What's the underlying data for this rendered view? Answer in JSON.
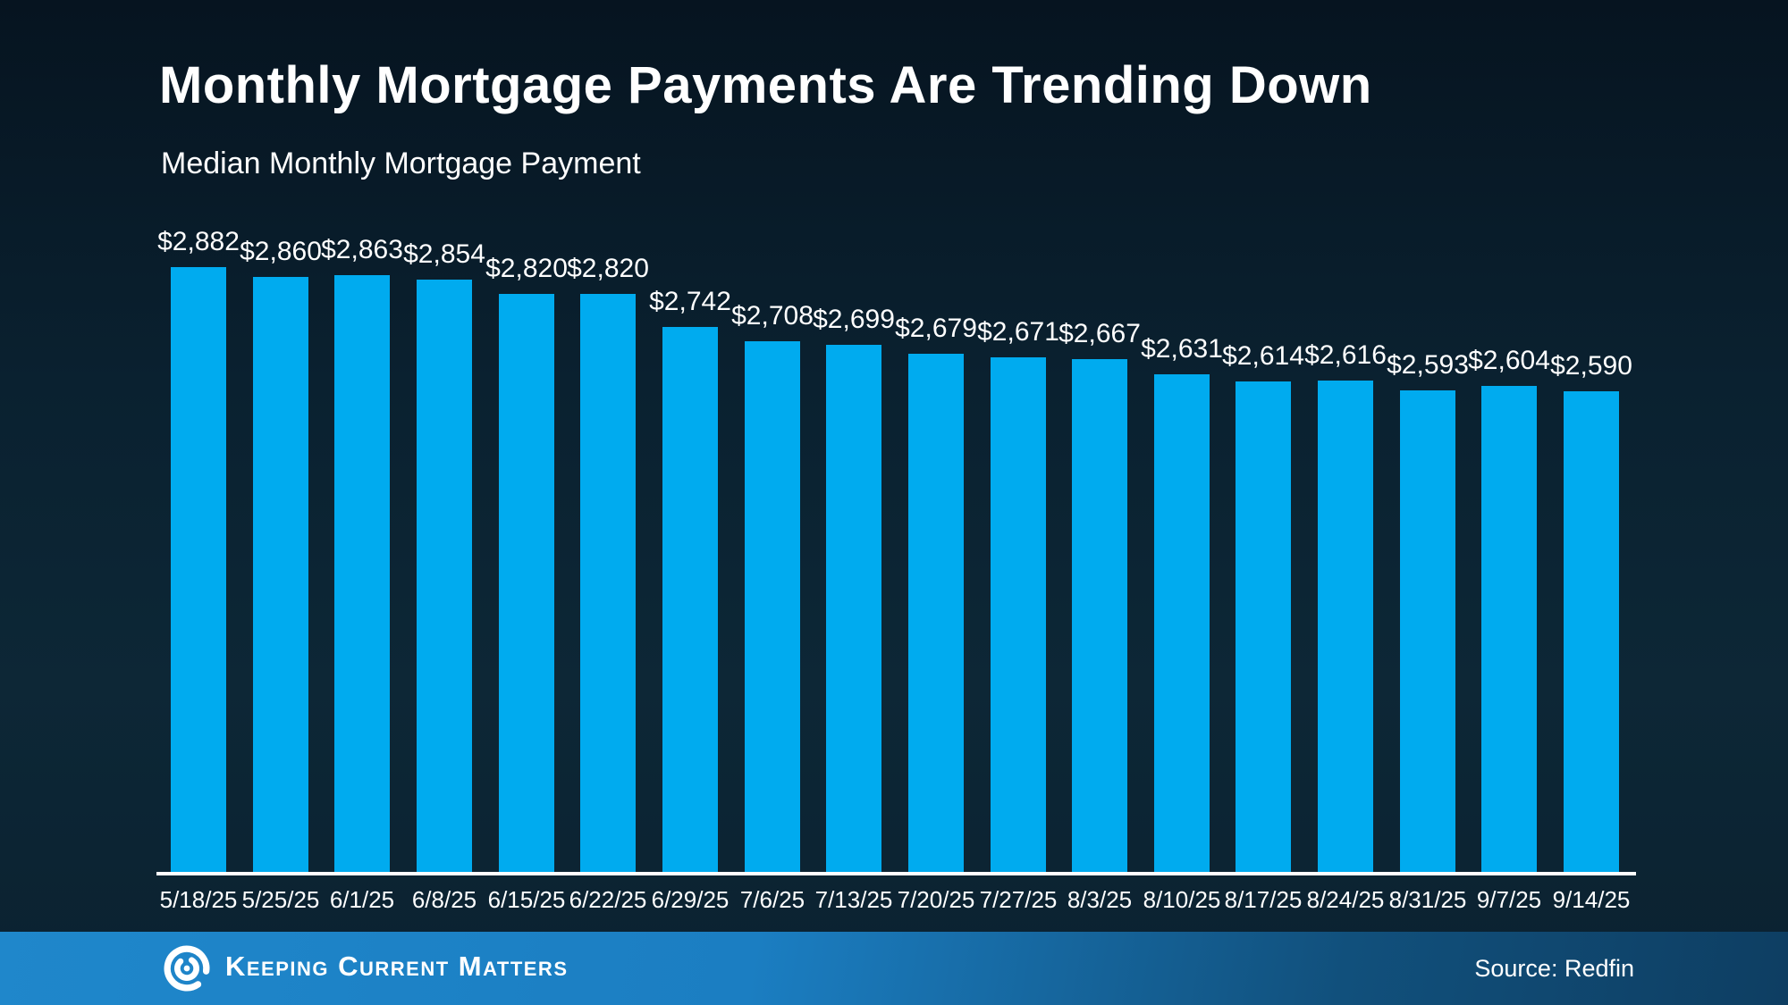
{
  "page": {
    "title": "Monthly Mortgage Payments Are Trending Down",
    "subtitle": "Median Monthly Mortgage Payment"
  },
  "footer": {
    "brand": "Keeping Current Matters",
    "source": "Source: Redfin",
    "logo_icon": "kcm-swirl-icon"
  },
  "colors": {
    "background_dark": "#0a2130",
    "bar": "#00abef",
    "baseline": "#ffffff",
    "text": "#ffffff",
    "footer_blue_left": "#1f87cb",
    "footer_blue_right": "#0e3e62"
  },
  "chart_data": {
    "type": "bar",
    "title": "Monthly Mortgage Payments Are Trending Down",
    "subtitle": "Median Monthly Mortgage Payment",
    "categories": [
      "5/18/25",
      "5/25/25",
      "6/1/25",
      "6/8/25",
      "6/15/25",
      "6/22/25",
      "6/29/25",
      "7/6/25",
      "7/13/25",
      "7/20/25",
      "7/27/25",
      "8/3/25",
      "8/10/25",
      "8/17/25",
      "8/24/25",
      "8/31/25",
      "9/7/25",
      "9/14/25"
    ],
    "values": [
      2882,
      2860,
      2863,
      2854,
      2820,
      2820,
      2742,
      2708,
      2699,
      2679,
      2671,
      2667,
      2631,
      2614,
      2616,
      2593,
      2604,
      2590
    ],
    "data_labels": [
      "$2,882",
      "$2,860",
      "$2,863",
      "$2,854",
      "$2,820",
      "$2,820",
      "$2,742",
      "$2,708",
      "$2,699",
      "$2,679",
      "$2,671",
      "$2,667",
      "$2,631",
      "$2,614",
      "$2,616",
      "$2,593",
      "$2,604",
      "$2,590"
    ],
    "xlabel": "",
    "ylabel": "",
    "ylim": [
      1460,
      2950
    ],
    "grid": false,
    "legend": false,
    "data_labels_shown": true,
    "bar_color": "#00abef",
    "source": "Source: Redfin"
  }
}
